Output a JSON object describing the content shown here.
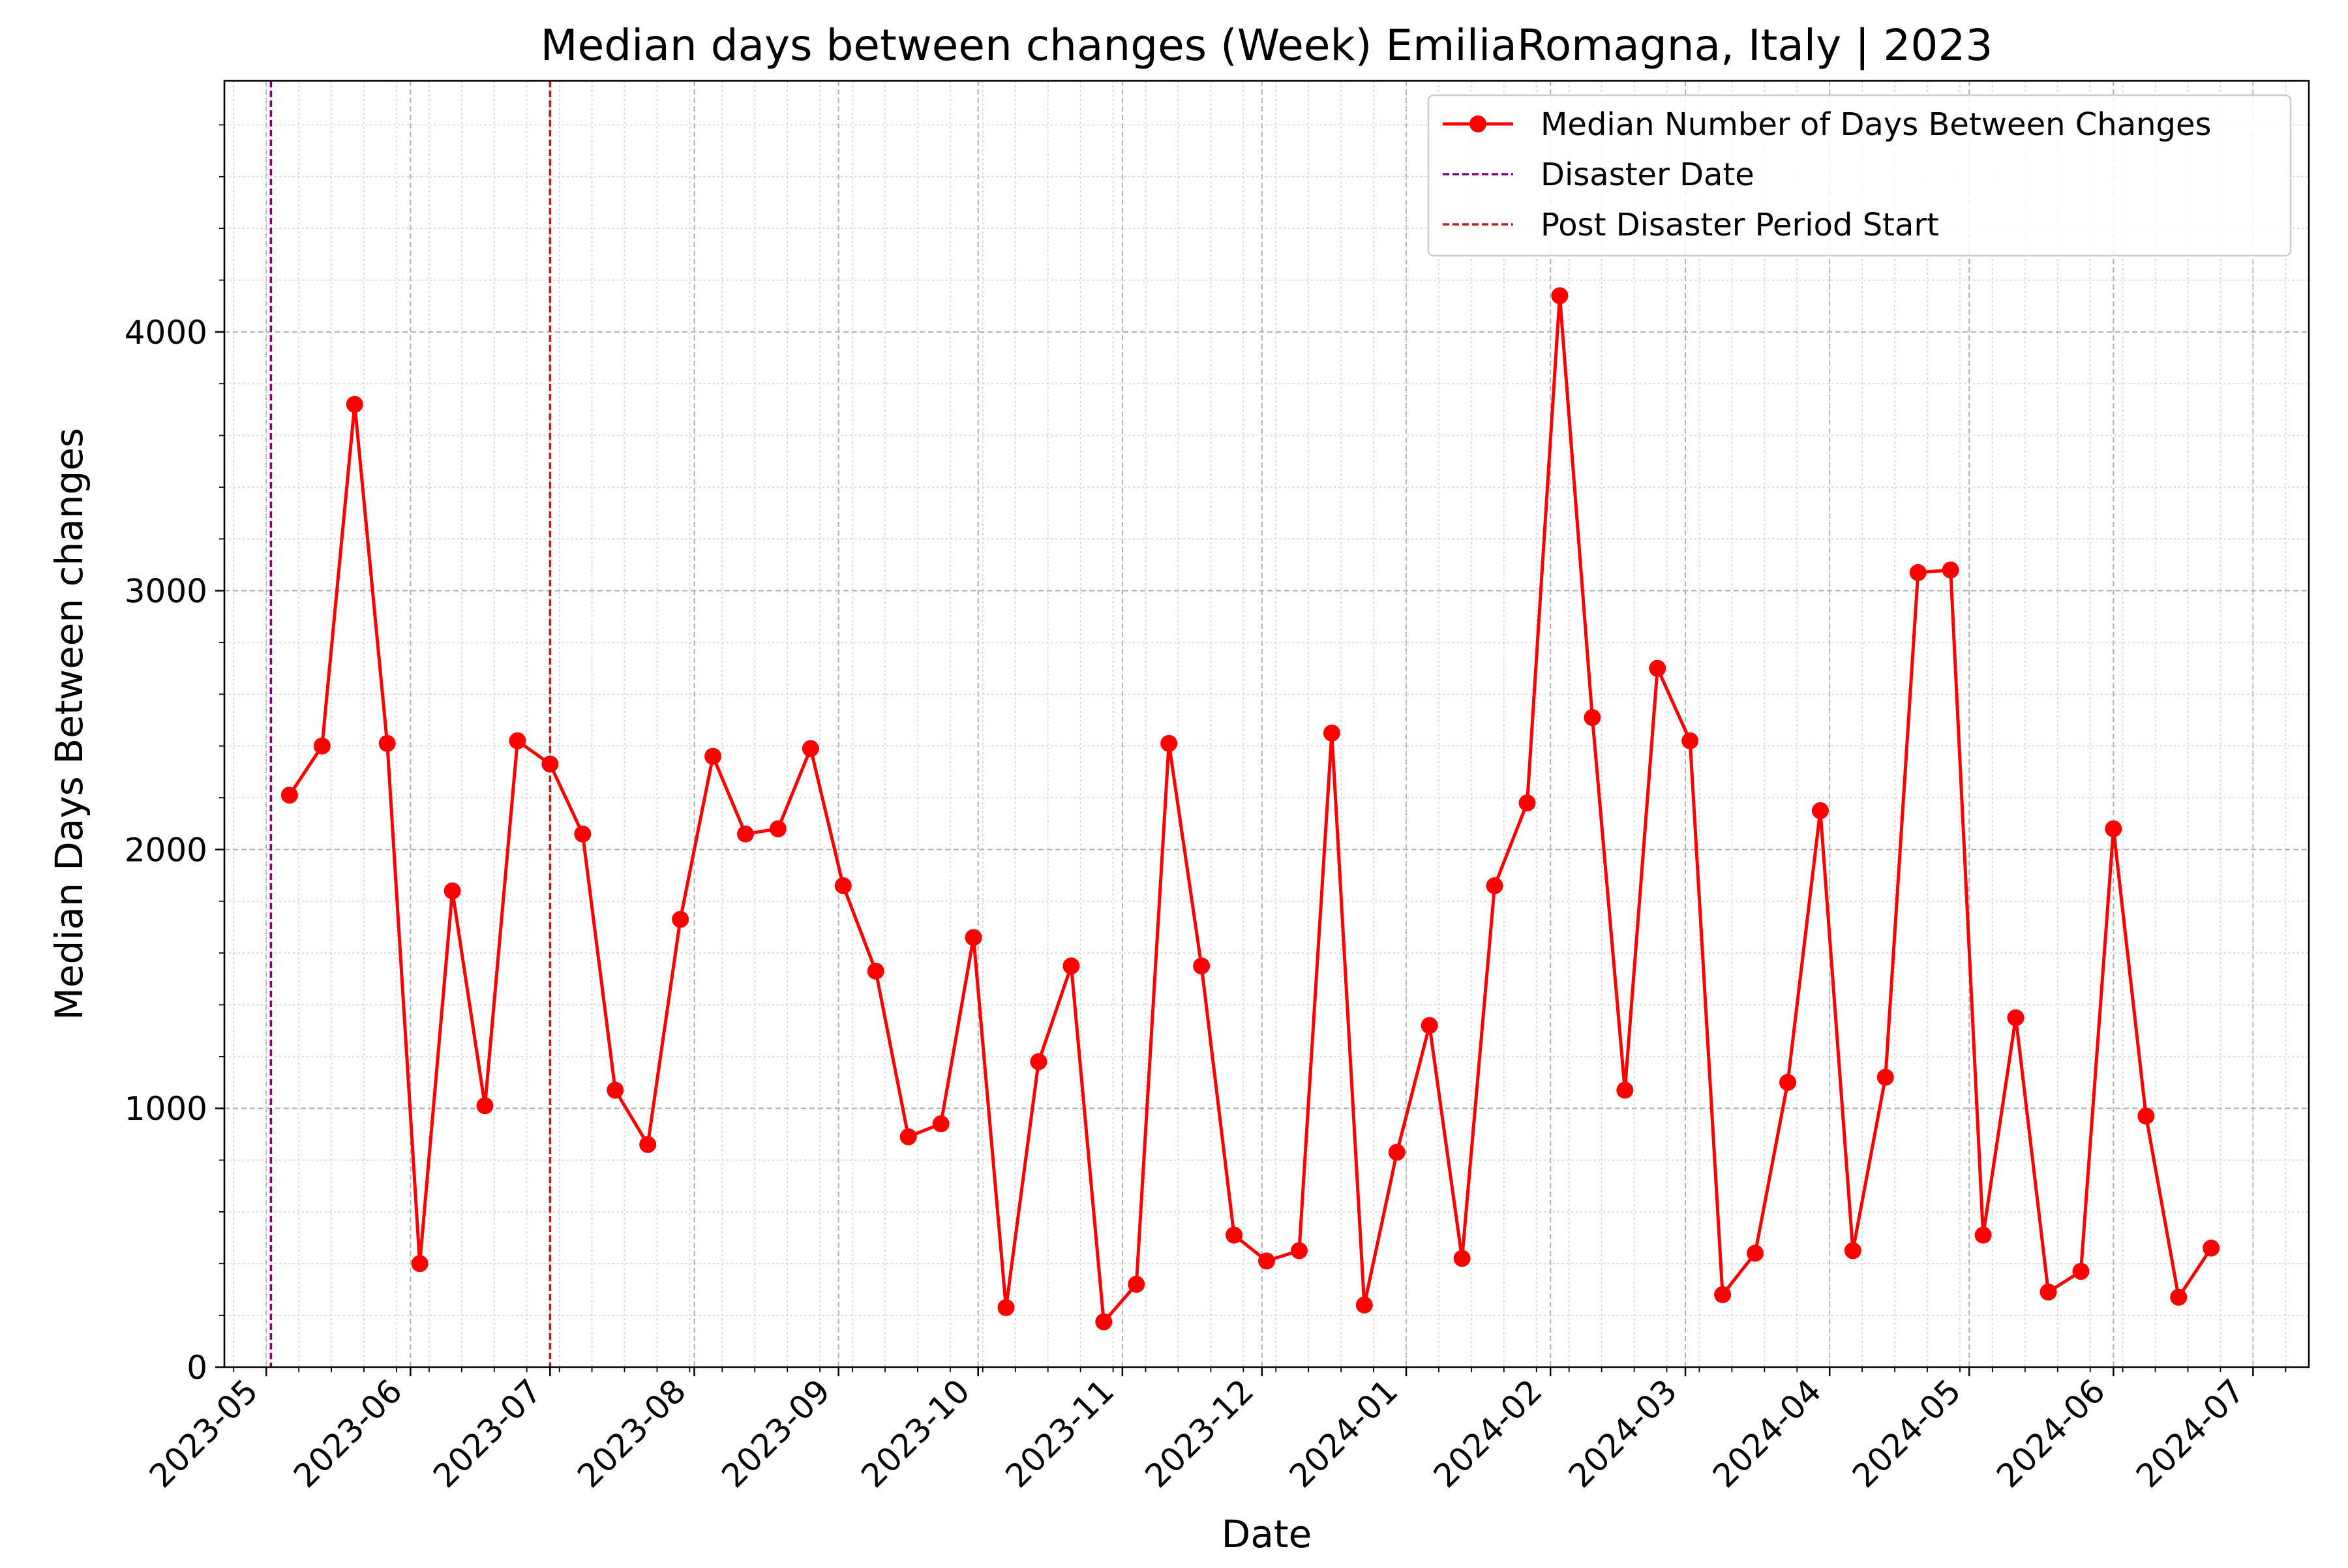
{
  "chart_data": {
    "type": "line",
    "title": "Median days between changes (Week) EmiliaRomagna, Italy | 2023",
    "xlabel": "Date",
    "ylabel": "Median Days Between changes",
    "xlim": [
      "2023-04-22",
      "2024-07-13"
    ],
    "ylim": [
      0,
      4970
    ],
    "x_ticks": [
      "2023-05",
      "2023-06",
      "2023-07",
      "2023-08",
      "2023-09",
      "2023-10",
      "2023-11",
      "2023-12",
      "2024-01",
      "2024-02",
      "2024-03",
      "2024-04",
      "2024-05",
      "2024-06",
      "2024-07"
    ],
    "y_ticks": [
      0,
      1000,
      2000,
      3000,
      4000
    ],
    "grid": true,
    "legend_position": "top-right",
    "colors": {
      "series": "#ff0000",
      "disaster": "#800080",
      "post_disaster": "#b22222"
    },
    "series": [
      {
        "name": "Median Number of Days Between Changes",
        "x": [
          "2023-05-06",
          "2023-05-13",
          "2023-05-20",
          "2023-05-27",
          "2023-06-03",
          "2023-06-10",
          "2023-06-17",
          "2023-06-24",
          "2023-07-01",
          "2023-07-08",
          "2023-07-15",
          "2023-07-22",
          "2023-07-29",
          "2023-08-05",
          "2023-08-12",
          "2023-08-19",
          "2023-08-26",
          "2023-09-02",
          "2023-09-09",
          "2023-09-16",
          "2023-09-23",
          "2023-09-30",
          "2023-10-07",
          "2023-10-14",
          "2023-10-21",
          "2023-10-28",
          "2023-11-04",
          "2023-11-11",
          "2023-11-18",
          "2023-11-25",
          "2023-12-02",
          "2023-12-09",
          "2023-12-16",
          "2023-12-23",
          "2023-12-30",
          "2024-01-06",
          "2024-01-13",
          "2024-01-20",
          "2024-01-27",
          "2024-02-03",
          "2024-02-10",
          "2024-02-17",
          "2024-02-24",
          "2024-03-02",
          "2024-03-09",
          "2024-03-16",
          "2024-03-23",
          "2024-03-30",
          "2024-04-06",
          "2024-04-13",
          "2024-04-20",
          "2024-04-27",
          "2024-05-04",
          "2024-05-11",
          "2024-05-18",
          "2024-05-25",
          "2024-06-01",
          "2024-06-08",
          "2024-06-15",
          "2024-06-22"
        ],
        "y": [
          2210,
          2400,
          3720,
          2410,
          400,
          1840,
          1010,
          2420,
          2330,
          2060,
          1070,
          860,
          1730,
          2360,
          2060,
          2080,
          2390,
          1860,
          1530,
          890,
          940,
          1660,
          230,
          1180,
          1550,
          175,
          320,
          2410,
          1550,
          510,
          410,
          450,
          2450,
          240,
          830,
          1320,
          420,
          1860,
          2180,
          4140,
          2510,
          1070,
          2700,
          2420,
          280,
          440,
          1100,
          2150,
          450,
          1120,
          3070,
          3080,
          510,
          1350,
          290,
          370,
          2080,
          970,
          270,
          460
        ]
      }
    ],
    "vlines": [
      {
        "name": "Disaster Date",
        "x": "2023-05-02",
        "style": "dashed"
      },
      {
        "name": "Post Disaster Period Start",
        "x": "2023-07-01",
        "style": "dashed"
      }
    ]
  }
}
